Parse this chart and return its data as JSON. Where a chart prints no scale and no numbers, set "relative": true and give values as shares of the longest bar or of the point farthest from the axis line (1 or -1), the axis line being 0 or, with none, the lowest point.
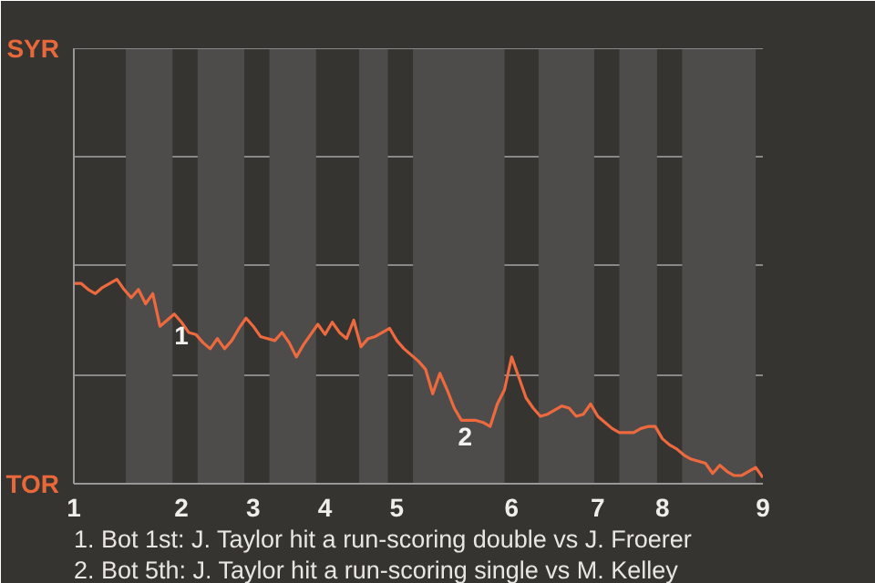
{
  "chart_data": {
    "type": "line",
    "relative": true,
    "categories": [
      "1",
      null,
      null,
      null,
      null,
      null,
      null,
      null,
      null,
      null,
      null,
      null,
      null,
      null,
      null,
      "2",
      null,
      null,
      null,
      null,
      null,
      null,
      null,
      null,
      null,
      "3",
      null,
      null,
      null,
      null,
      null,
      null,
      null,
      null,
      null,
      "4",
      null,
      null,
      null,
      null,
      null,
      null,
      null,
      null,
      null,
      "5",
      null,
      null,
      null,
      null,
      null,
      null,
      null,
      null,
      null,
      null,
      null,
      null,
      null,
      null,
      null,
      "6",
      null,
      null,
      null,
      null,
      null,
      null,
      null,
      null,
      null,
      null,
      null,
      "7",
      null,
      null,
      null,
      null,
      null,
      null,
      null,
      null,
      "8",
      null,
      null,
      null,
      null,
      null,
      null,
      null,
      null,
      null,
      null,
      null,
      null,
      null,
      "9"
    ],
    "marker": "none",
    "line_style": "solid",
    "ref_lines": [
      {
        "axis": "y",
        "value": 0.53,
        "color": "#8a8886"
      },
      {
        "axis": "y",
        "value": 1.07,
        "color": "#8a8886"
      },
      {
        "axis": "y",
        "value": 1.6,
        "color": "#8a8886"
      }
    ],
    "series": [
      {
        "color": "#ee6a3e",
        "values": [
          0.98,
          0.98,
          0.95,
          0.93,
          0.96,
          0.98,
          1,
          0.95,
          0.91,
          0.95,
          0.88,
          0.93,
          0.77,
          0.8,
          0.83,
          0.79,
          0.74,
          0.73,
          0.69,
          0.66,
          0.71,
          0.66,
          0.7,
          0.76,
          0.81,
          0.77,
          0.72,
          0.71,
          0.7,
          0.74,
          0.69,
          0.62,
          0.68,
          0.73,
          0.78,
          0.73,
          0.79,
          0.74,
          0.71,
          0.8,
          0.67,
          0.71,
          0.72,
          0.74,
          0.76,
          0.7,
          0.66,
          0.63,
          0.6,
          0.56,
          0.44,
          0.54,
          0.46,
          0.37,
          0.31,
          0.31,
          0.31,
          0.3,
          0.28,
          0.39,
          0.46,
          0.62,
          0.52,
          0.42,
          0.37,
          0.33,
          0.34,
          0.36,
          0.38,
          0.37,
          0.33,
          0.34,
          0.39,
          0.33,
          0.3,
          0.27,
          0.25,
          0.25,
          0.25,
          0.27,
          0.28,
          0.28,
          0.22,
          0.19,
          0.17,
          0.14,
          0.12,
          0.11,
          0.1,
          0.05,
          0.09,
          0.06,
          0.04,
          0.04,
          0.06,
          0.08,
          0.03
        ]
      }
    ],
    "annotations": [
      {
        "text": "1",
        "x": "2",
        "y": 0.77
      },
      "2",
      "SYR",
      "TOR",
      "1. Bot 1st: J. Taylor hit a run-scoring double vs J. Froerer",
      "2. Bot 5th: J. Taylor hit a run-scoring single vs M. Kelley"
    ]
  }
}
